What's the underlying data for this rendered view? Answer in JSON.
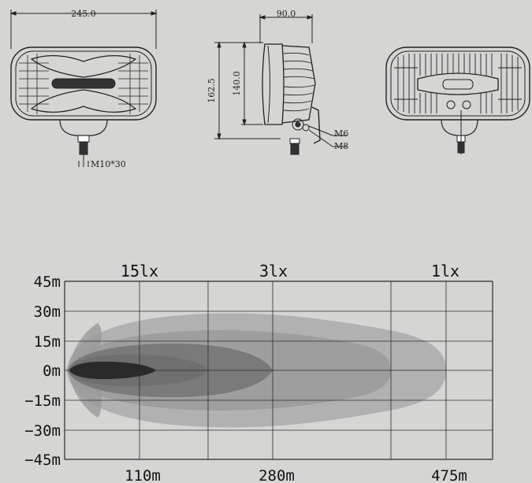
{
  "dimensions": {
    "width": "245.0",
    "depth": "90.0",
    "height_total": "162.5",
    "height_body": "140.0",
    "bolt": "M10*30",
    "screw_1": "M6",
    "screw_2": "M8"
  },
  "beam_chart": {
    "lux_labels": [
      "15lx",
      "3lx",
      "1lx"
    ],
    "y_labels": [
      "45m",
      "30m",
      "15m",
      "0m",
      "−15m",
      "−30m",
      "−45m"
    ],
    "x_labels": [
      "110m",
      "280m",
      "475m"
    ],
    "colors": {
      "grid": "#2b2b2b",
      "outer": "#aaaaaa",
      "mid": "#9a9a9a",
      "inner": "#6e6e6e",
      "core": "#2a2a2a"
    }
  }
}
